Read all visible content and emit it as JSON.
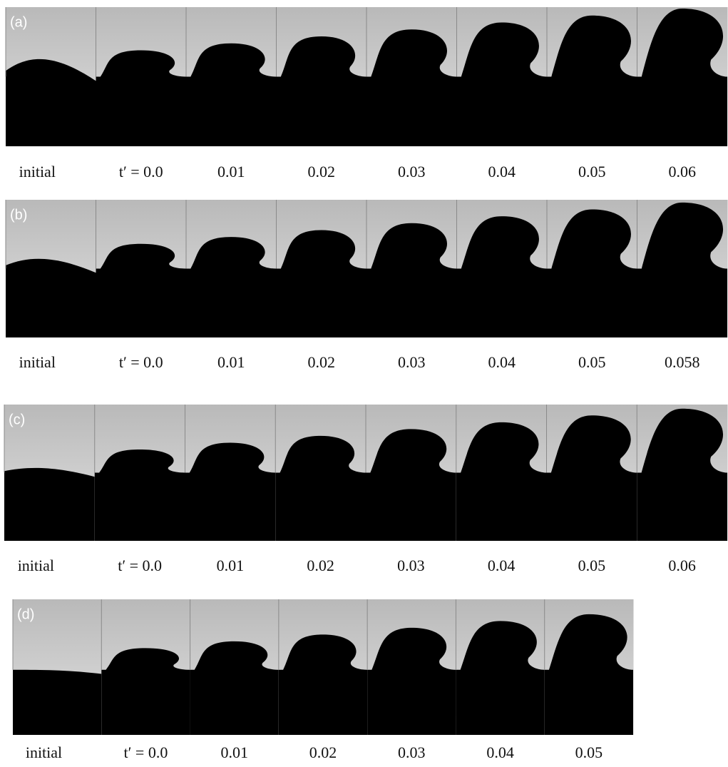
{
  "panels": [
    {
      "label": "(a)",
      "frames": [
        "initial",
        "t′ = 0.0",
        "0.01",
        "0.02",
        "0.03",
        "0.04",
        "0.05",
        "0.06"
      ]
    },
    {
      "label": "(b)",
      "frames": [
        "initial",
        "t′ = 0.0",
        "0.01",
        "0.02",
        "0.03",
        "0.04",
        "0.05",
        "0.058"
      ]
    },
    {
      "label": "(c)",
      "frames": [
        "initial",
        "t′ = 0.0",
        "0.01",
        "0.02",
        "0.03",
        "0.04",
        "0.05",
        "0.06"
      ]
    },
    {
      "label": "(d)",
      "frames": [
        "initial",
        "t′ = 0.0",
        "0.01",
        "0.02",
        "0.03",
        "0.04",
        "0.05"
      ]
    }
  ]
}
